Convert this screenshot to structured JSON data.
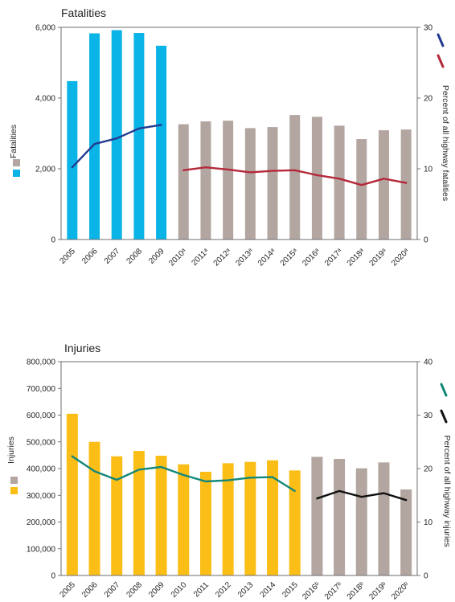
{
  "chart_data": [
    {
      "type": "bar",
      "title": "Fatalities",
      "left_axis_label": "Fatalities",
      "right_axis_label": "Percent of all highway fatalities",
      "ylim": [
        0,
        6000
      ],
      "y2lim": [
        0,
        30
      ],
      "y_ticks": [
        "0",
        "2,000",
        "4,000",
        "6,000"
      ],
      "y2_ticks": [
        "0",
        "10",
        "20",
        "30"
      ],
      "categories": [
        "2005",
        "2006",
        "2007",
        "2008",
        "2009",
        "2010ᵃ",
        "2011ᵃ",
        "2012ᵃ",
        "2013ᵃ",
        "2014ᵃ",
        "2015ᵃ",
        "2016ᵃ",
        "2017ᵃ",
        "2018ᵃ",
        "2019ᵃ",
        "2020ᵃ"
      ],
      "series": [
        {
          "kind": "bar",
          "axis": "left",
          "color": "#0ab4e6",
          "values": [
            4480,
            5830,
            5920,
            5840,
            5480,
            null,
            null,
            null,
            null,
            null,
            null,
            null,
            null,
            null,
            null,
            null
          ]
        },
        {
          "kind": "bar",
          "axis": "left",
          "color": "#b3a6a1",
          "values": [
            null,
            null,
            null,
            null,
            null,
            3260,
            3340,
            3360,
            3150,
            3180,
            3520,
            3470,
            3220,
            2840,
            3090,
            3110
          ]
        },
        {
          "kind": "line",
          "axis": "right",
          "color": "#213a8f",
          "values": [
            10.2,
            13.5,
            14.3,
            15.7,
            16.2,
            null,
            null,
            null,
            null,
            null,
            null,
            null,
            null,
            null,
            null,
            null
          ]
        },
        {
          "kind": "line",
          "axis": "right",
          "color": "#b5283a",
          "values": [
            null,
            null,
            null,
            null,
            null,
            9.8,
            10.2,
            9.9,
            9.5,
            9.7,
            9.8,
            9.1,
            8.6,
            7.7,
            8.6,
            8.0
          ]
        }
      ]
    },
    {
      "type": "bar",
      "title": "Injuries",
      "left_axis_label": "Injuries",
      "right_axis_label": "Percent of all highway injuries",
      "ylim": [
        0,
        800000
      ],
      "y2lim": [
        0,
        40
      ],
      "y_ticks": [
        "0",
        "100,000",
        "200,000",
        "300,000",
        "400,000",
        "500,000",
        "600,000",
        "700,000",
        "800,000"
      ],
      "y2_ticks": [
        "0",
        "10",
        "20",
        "30",
        "40"
      ],
      "categories": [
        "2005",
        "2006",
        "2007",
        "2008",
        "2009",
        "2010",
        "2011",
        "2012",
        "2013",
        "2014",
        "2015",
        "2016ᵇ",
        "2017ᵇ",
        "2018ᵇ",
        "2019ᵇ",
        "2020ᵇ"
      ],
      "series": [
        {
          "kind": "bar",
          "axis": "left",
          "color": "#fbbe16",
          "values": [
            605000,
            500000,
            446000,
            466000,
            448000,
            416000,
            388000,
            420000,
            425000,
            431000,
            393000,
            null,
            null,
            null,
            null,
            null
          ]
        },
        {
          "kind": "bar",
          "axis": "left",
          "color": "#b3a6a1",
          "values": [
            null,
            null,
            null,
            null,
            null,
            null,
            null,
            null,
            null,
            null,
            null,
            444000,
            436000,
            401000,
            423000,
            322000
          ]
        },
        {
          "kind": "line",
          "axis": "right",
          "color": "#12887a",
          "values": [
            22.3,
            19.5,
            17.9,
            19.8,
            20.3,
            18.8,
            17.6,
            17.8,
            18.3,
            18.4,
            15.8,
            null,
            null,
            null,
            null,
            null
          ]
        },
        {
          "kind": "line",
          "axis": "right",
          "color": "#111111",
          "values": [
            null,
            null,
            null,
            null,
            null,
            null,
            null,
            null,
            null,
            null,
            null,
            14.4,
            15.8,
            14.7,
            15.4,
            14.1
          ]
        }
      ]
    }
  ]
}
